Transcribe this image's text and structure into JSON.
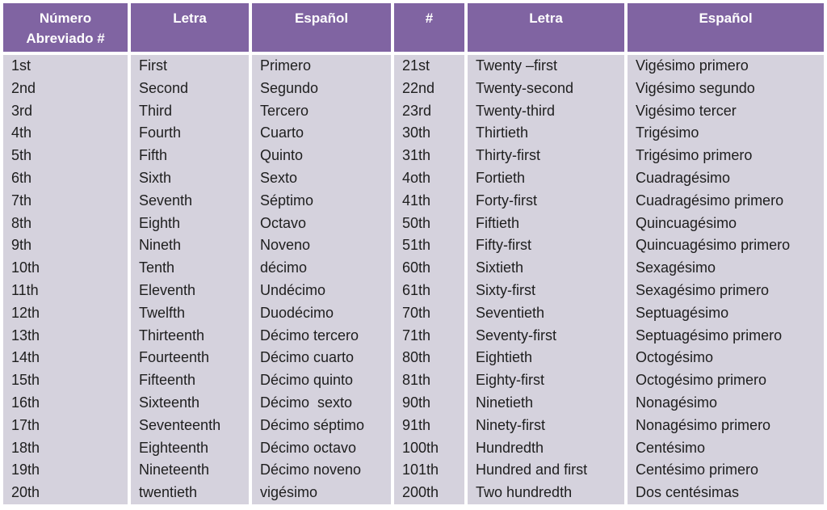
{
  "colors": {
    "header_bg": "#8064A2",
    "header_text": "#FFFFFF",
    "body_bg": "#D5D2DD",
    "body_text": "#1E1E1E",
    "separator": "#FFFFFF"
  },
  "table": {
    "columns": [
      {
        "label": "Número Abreviado #"
      },
      {
        "label": "Letra"
      },
      {
        "label": "Español"
      },
      {
        "label": "#"
      },
      {
        "label": "Letra"
      },
      {
        "label": "Español"
      }
    ],
    "rows": [
      [
        "1st",
        "First",
        "Primero",
        "21st",
        "Twenty –first",
        "Vigésimo primero"
      ],
      [
        "2nd",
        "Second",
        "Segundo",
        "22nd",
        "Twenty-second",
        "Vigésimo segundo"
      ],
      [
        "3rd",
        "Third",
        "Tercero",
        "23rd",
        "Twenty-third",
        "Vigésimo tercer"
      ],
      [
        "4th",
        "Fourth",
        "Cuarto",
        "30th",
        "Thirtieth",
        "Trigésimo"
      ],
      [
        "5th",
        "Fifth",
        "Quinto",
        "31th",
        "Thirty-first",
        "Trigésimo primero"
      ],
      [
        "6th",
        "Sixth",
        "Sexto",
        "4oth",
        "Fortieth",
        "Cuadragésimo"
      ],
      [
        "7th",
        "Seventh",
        "Séptimo",
        "41th",
        "Forty-first",
        "Cuadragésimo primero"
      ],
      [
        "8th",
        "Eighth",
        "Octavo",
        "50th",
        "Fiftieth",
        "Quincuagésimo"
      ],
      [
        "9th",
        "Nineth",
        "Noveno",
        "51th",
        "Fifty-first",
        "Quincuagésimo primero"
      ],
      [
        "10th",
        "Tenth",
        "décimo",
        "60th",
        "Sixtieth",
        "Sexagésimo"
      ],
      [
        "11th",
        "Eleventh",
        "Undécimo",
        "61th",
        "Sixty-first",
        "Sexagésimo primero"
      ],
      [
        "12th",
        "Twelfth",
        "Duodécimo",
        "70th",
        "Seventieth",
        "Septuagésimo"
      ],
      [
        "13th",
        "Thirteenth",
        "Décimo tercero",
        "71th",
        "Seventy-first",
        "Septuagésimo primero"
      ],
      [
        "14th",
        "Fourteenth",
        "Décimo cuarto",
        "80th",
        "Eightieth",
        "Octogésimo"
      ],
      [
        "15th",
        "Fifteenth",
        "Décimo quinto",
        "81th",
        "Eighty-first",
        "Octogésimo primero"
      ],
      [
        "16th",
        "Sixteenth",
        "Décimo  sexto",
        "90th",
        "Ninetieth",
        "Nonagésimo"
      ],
      [
        "17th",
        "Seventeenth",
        "Décimo séptimo",
        "91th",
        "Ninety-first",
        "Nonagésimo primero"
      ],
      [
        "18th",
        "Eighteenth",
        "Décimo octavo",
        "100th",
        "Hundredth",
        "Centésimo"
      ],
      [
        "19th",
        "Nineteenth",
        "Décimo noveno",
        "101th",
        "Hundred and first",
        "Centésimo primero"
      ],
      [
        "20th",
        "twentieth",
        "vigésimo",
        "200th",
        "Two hundredth",
        "Dos centésimas"
      ]
    ]
  }
}
